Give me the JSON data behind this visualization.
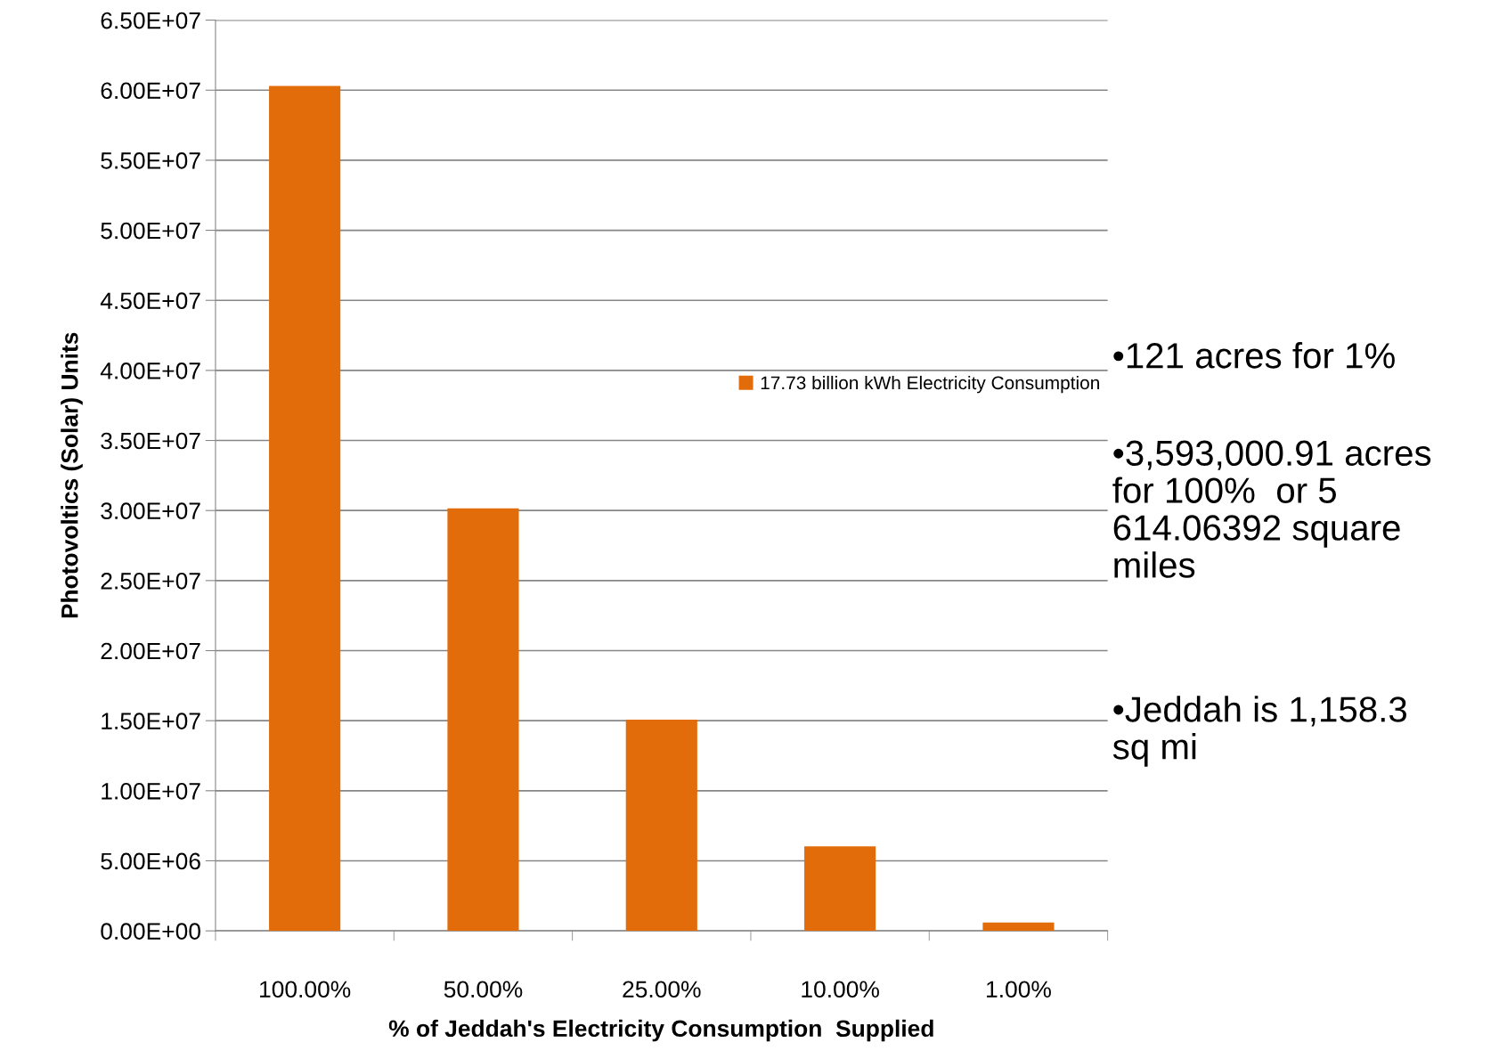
{
  "chart_data": {
    "type": "bar",
    "categories": [
      "100.00%",
      "50.00%",
      "25.00%",
      "10.00%",
      "1.00%"
    ],
    "series": [
      {
        "name": "17.73 billion kWh Electricity Consumption",
        "color": "#e36c0a",
        "values": [
          60300000,
          30150000,
          15080000,
          6030000,
          603000
        ]
      }
    ],
    "xlabel": "% of Jeddah's Electricity Consumption  Supplied",
    "ylabel": "Photovoltics (Solar) Units",
    "ylim": [
      0,
      65000000
    ],
    "yticks": [
      {
        "value": 0,
        "label": "0.00E+00"
      },
      {
        "value": 5000000,
        "label": "5.00E+06"
      },
      {
        "value": 10000000,
        "label": "1.00E+07"
      },
      {
        "value": 15000000,
        "label": "1.50E+07"
      },
      {
        "value": 20000000,
        "label": "2.00E+07"
      },
      {
        "value": 25000000,
        "label": "2.50E+07"
      },
      {
        "value": 30000000,
        "label": "3.00E+07"
      },
      {
        "value": 35000000,
        "label": "3.50E+07"
      },
      {
        "value": 40000000,
        "label": "4.00E+07"
      },
      {
        "value": 45000000,
        "label": "4.50E+07"
      },
      {
        "value": 50000000,
        "label": "5.00E+07"
      },
      {
        "value": 55000000,
        "label": "5.50E+07"
      },
      {
        "value": 60000000,
        "label": "6.00E+07"
      },
      {
        "value": 65000000,
        "label": "6.50E+07"
      }
    ],
    "grid": "y",
    "legend": "right",
    "annotations": [
      "•121 acres for 1%",
      "•3,593,000.91 acres\nfor 100%  or 5\n614.06392 square\nmiles",
      "•Jeddah is 1,158.3\nsq mi"
    ]
  }
}
